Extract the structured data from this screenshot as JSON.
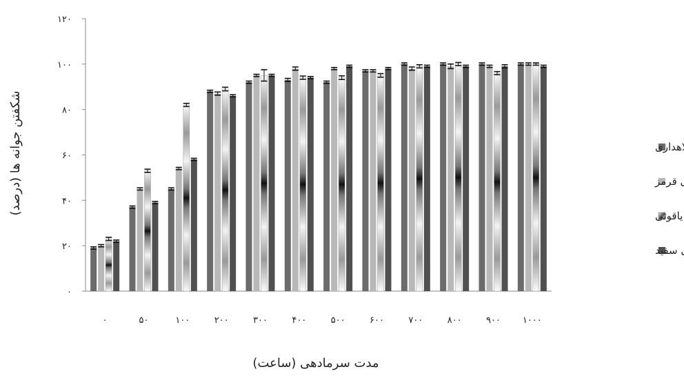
{
  "chart_data": {
    "type": "bar",
    "title": "",
    "xlabel": "مدت سرمادهی (ساعت)",
    "ylabel": "شکفتن جوانه ها (درصد)",
    "ylim": [
      0,
      120
    ],
    "yticks": [
      0,
      20,
      40,
      60,
      80,
      100,
      120
    ],
    "ytick_labels": [
      "۰",
      "۲۰",
      "۴۰",
      "۶۰",
      "۸۰",
      "۱۰۰",
      "۱۲۰"
    ],
    "categories": [
      "۰",
      "۵۰",
      "۱۰۰",
      "۲۰۰",
      "۳۰۰",
      "۴۰۰",
      "۵۰۰",
      "۶۰۰",
      "۷۰۰",
      "۸۰۰",
      "۹۰۰",
      "۱۰۰۰"
    ],
    "grid": false,
    "legend_position": "right",
    "series": [
      {
        "name": "کلاهداری",
        "color": "#6b6b6b",
        "values": [
          19,
          37,
          45,
          88,
          92,
          93,
          92,
          97,
          100,
          100,
          100,
          100
        ],
        "errors": [
          0.5,
          0.5,
          0.5,
          0.5,
          0.5,
          0.7,
          0.5,
          0.5,
          0.5,
          0.5,
          0.5,
          0.5
        ]
      },
      {
        "name": "کشمشی قرمز",
        "color": "#b8b8b8",
        "values": [
          20,
          45,
          54,
          87,
          95,
          98,
          98,
          97,
          98,
          99,
          99,
          100
        ],
        "errors": [
          0.5,
          0.5,
          0.5,
          0.7,
          0.5,
          0.7,
          0.5,
          0.5,
          0.7,
          1.0,
          0.5,
          0.5
        ]
      },
      {
        "name": "یاقوتی",
        "color": "#dcdcdc",
        "values": [
          23,
          53,
          82,
          89,
          95,
          94,
          94,
          95,
          99,
          100,
          96,
          100
        ],
        "errors": [
          0.7,
          0.7,
          0.7,
          0.8,
          2.5,
          0.7,
          0.8,
          0.8,
          0.7,
          0.7,
          0.7,
          0.5
        ]
      },
      {
        "name": "کشمشی سفید",
        "color": "#505050",
        "values": [
          22,
          39,
          58,
          86,
          95,
          94,
          99,
          98,
          99,
          99,
          99,
          99
        ],
        "errors": [
          0.5,
          0.5,
          0.5,
          0.5,
          0.5,
          0.5,
          0.5,
          0.5,
          0.5,
          0.5,
          0.7,
          0.5
        ]
      }
    ]
  }
}
